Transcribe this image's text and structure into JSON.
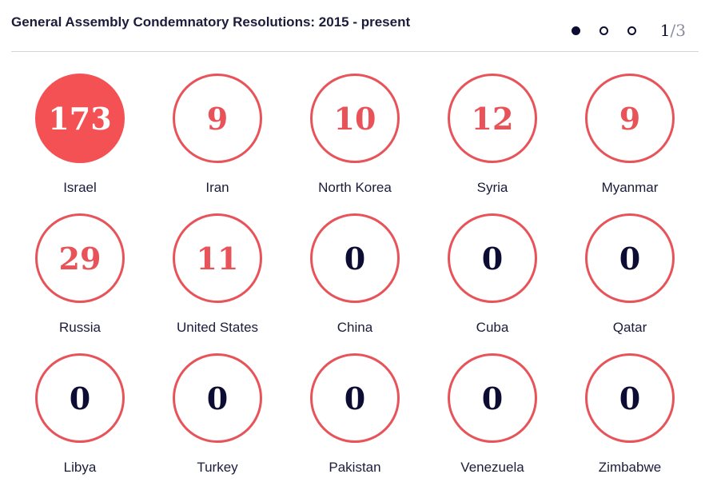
{
  "header": {
    "title": "General Assembly Condemnatory Resolutions: 2015 - present",
    "pager": {
      "current": "1",
      "separator": "/",
      "total": "3",
      "dots": 3,
      "active_index": 0
    }
  },
  "colors": {
    "accent": "#e8535a",
    "filled": "#f45154",
    "navy": "#0d0d33"
  },
  "chart_data": {
    "type": "table",
    "title": "General Assembly Condemnatory Resolutions: 2015 - present",
    "categories": [
      "Israel",
      "Iran",
      "North Korea",
      "Syria",
      "Myanmar",
      "Russia",
      "United States",
      "China",
      "Cuba",
      "Qatar",
      "Libya",
      "Turkey",
      "Pakistan",
      "Venezuela",
      "Zimbabwe"
    ],
    "values": [
      173,
      9,
      10,
      12,
      9,
      29,
      11,
      0,
      0,
      0,
      0,
      0,
      0,
      0,
      0
    ],
    "highlight": "Israel"
  }
}
